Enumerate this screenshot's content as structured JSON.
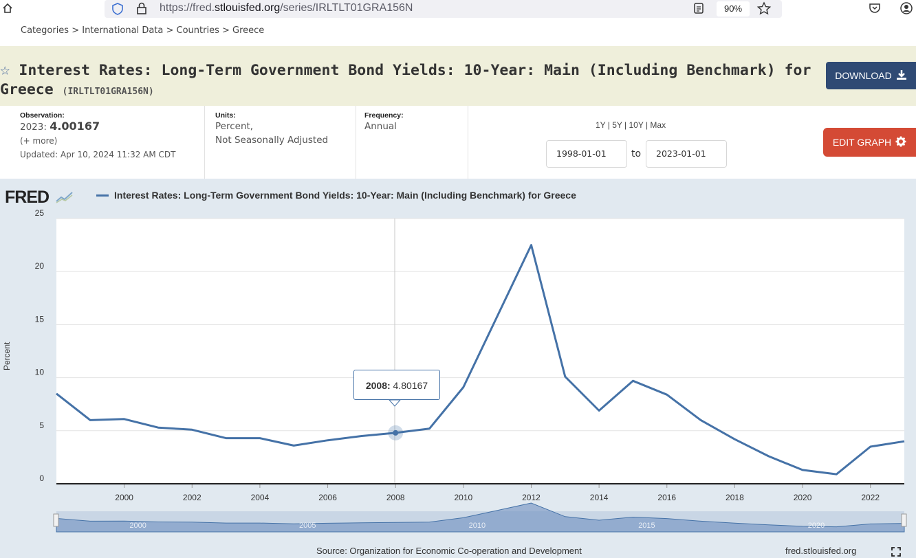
{
  "browser": {
    "url_prefix": "https://fred.",
    "url_domain": "stlouisfed.org",
    "url_path": "/series/IRLTLT01GRA156N",
    "zoom": "90%"
  },
  "breadcrumb": "Categories > International Data > Countries > Greece",
  "header": {
    "title": "Interest Rates: Long-Term Government Bond Yields: 10-Year: Main (Including Benchmark) for Greece",
    "series_id": "(IRLTLT01GRA156N)",
    "download_label": "DOWNLOAD"
  },
  "meta": {
    "observation_label": "Observation:",
    "observation_year": "2023:",
    "observation_value": "4.00167",
    "more_label": "(+ more)",
    "updated": "Updated: Apr 10, 2024 11:32 AM CDT",
    "units_label": "Units:",
    "units_line1": "Percent,",
    "units_line2": "Not Seasonally Adjusted",
    "frequency_label": "Frequency:",
    "frequency_value": "Annual",
    "range_links": "1Y | 5Y | 10Y | Max",
    "start_date": "1998-01-01",
    "to_label": "to",
    "end_date": "2023-01-01",
    "edit_graph_label": "EDIT GRAPH"
  },
  "graph": {
    "logo": "FRED",
    "legend_label": "Interest Rates: Long-Term Government Bond Yields: 10-Year: Main (Including Benchmark) for Greece",
    "tooltip_year": "2008:",
    "tooltip_value": "4.80167",
    "source": "Source: Organization for Economic Co-operation and Development",
    "site": "fred.stlouisfed.org",
    "line_color": "#4572a7"
  },
  "chart_data": {
    "type": "line",
    "ylabel": "Percent",
    "ylim": [
      0,
      25
    ],
    "yticks": [
      0,
      5,
      10,
      15,
      20,
      25
    ],
    "xticks": [
      2000,
      2002,
      2004,
      2006,
      2008,
      2010,
      2012,
      2014,
      2016,
      2018,
      2020,
      2022
    ],
    "navigator_ticks": [
      2000,
      2005,
      2010,
      2015,
      2020
    ],
    "xlim": [
      1998,
      2023
    ],
    "grid": true,
    "series": [
      {
        "name": "Interest Rates: Long-Term Government Bond Yields: 10-Year: Main (Including Benchmark) for Greece",
        "x": [
          1998,
          1999,
          2000,
          2001,
          2002,
          2003,
          2004,
          2005,
          2006,
          2007,
          2008,
          2009,
          2010,
          2011,
          2012,
          2013,
          2014,
          2015,
          2016,
          2017,
          2018,
          2019,
          2020,
          2021,
          2022,
          2023
        ],
        "values": [
          8.5,
          6.0,
          6.1,
          5.3,
          5.1,
          4.3,
          4.3,
          3.6,
          4.1,
          4.5,
          4.80167,
          5.2,
          9.1,
          15.8,
          22.5,
          10.1,
          6.9,
          9.7,
          8.4,
          6.0,
          4.2,
          2.6,
          1.3,
          0.9,
          3.5,
          4.00167
        ]
      }
    ],
    "highlighted_point": {
      "x": 2008,
      "y": 4.80167
    }
  }
}
